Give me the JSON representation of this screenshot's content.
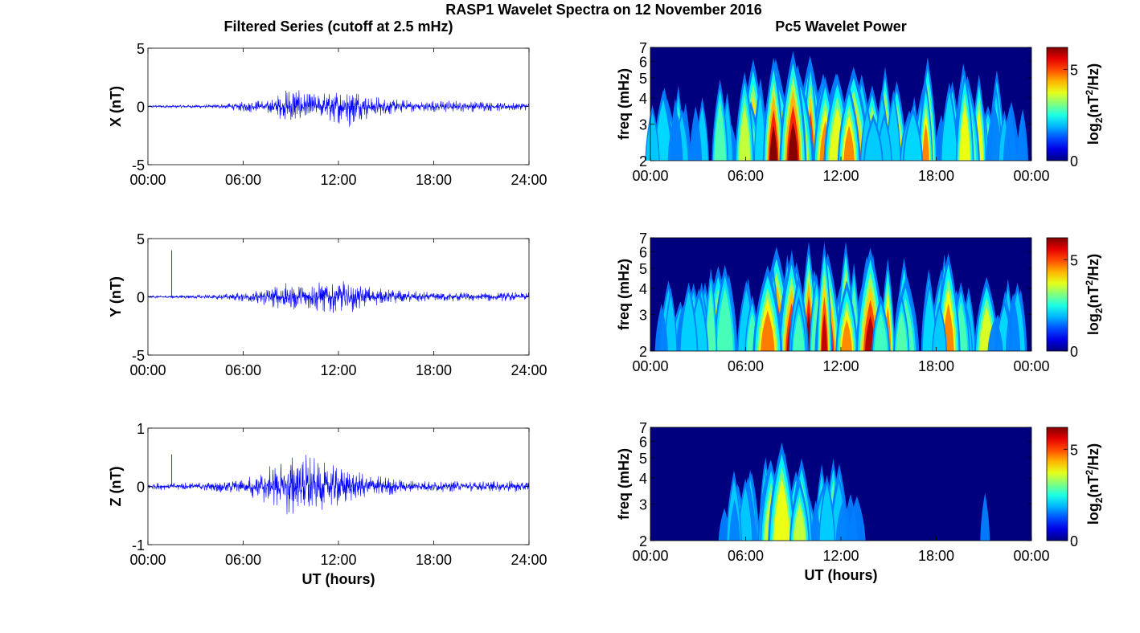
{
  "figure": {
    "title": "RASP1 Wavelet Spectra on 12 November 2016",
    "left_column_title": "Filtered Series (cutoff at 2.5 mHz)",
    "right_column_title": "Pc5 Wavelet Power"
  },
  "colors": {
    "series_line": "#0000ff",
    "axes": "#000000",
    "colormap": "jet",
    "spectrogram_background": "#00007f"
  },
  "chart_data": [
    {
      "type": "line",
      "panel": "X",
      "ylabel": "X (nT)",
      "xlabel": "",
      "ylim": [
        -5,
        5
      ],
      "yticks": [
        "5",
        "0",
        "-5"
      ],
      "xticks": [
        "00:00",
        "06:00",
        "12:00",
        "18:00",
        "24:00"
      ],
      "x_unit": "hours UT",
      "envelope": {
        "hours": [
          0,
          2,
          4,
          5,
          6,
          7,
          8,
          8.5,
          9,
          9.5,
          10,
          10.5,
          11,
          12,
          12.5,
          13,
          13.5,
          14,
          15,
          16,
          18,
          20,
          22,
          24
        ],
        "amplitude_nT": [
          0.12,
          0.15,
          0.18,
          0.28,
          0.45,
          0.6,
          0.9,
          1.3,
          1.8,
          1.5,
          1.1,
          1.2,
          1.3,
          1.6,
          2.0,
          1.7,
          1.3,
          1.0,
          0.8,
          0.6,
          0.55,
          0.5,
          0.45,
          0.35
        ]
      },
      "series": [
        {
          "name": "",
          "color": "#0000ff"
        }
      ]
    },
    {
      "type": "line",
      "panel": "Y",
      "ylabel": "Y (nT)",
      "xlabel": "",
      "ylim": [
        -5,
        5
      ],
      "yticks": [
        "5",
        "0",
        "-5"
      ],
      "xticks": [
        "00:00",
        "06:00",
        "12:00",
        "18:00",
        "24:00"
      ],
      "x_unit": "hours UT",
      "spike": {
        "hour": 1.5,
        "value_nT": 4.0
      },
      "envelope": {
        "hours": [
          0,
          2,
          4,
          5,
          6,
          7,
          8,
          9,
          9.5,
          10,
          11,
          12,
          13,
          14,
          15,
          16,
          18,
          20,
          22,
          24
        ],
        "amplitude_nT": [
          0.12,
          0.15,
          0.2,
          0.3,
          0.45,
          0.7,
          1.0,
          1.4,
          1.2,
          1.1,
          1.4,
          1.6,
          1.3,
          0.9,
          0.7,
          0.55,
          0.45,
          0.42,
          0.4,
          0.4
        ]
      },
      "series": [
        {
          "name": "",
          "color": "#0000ff"
        }
      ]
    },
    {
      "type": "line",
      "panel": "Z",
      "ylabel": "Z (nT)",
      "xlabel": "UT (hours)",
      "ylim": [
        -1,
        1
      ],
      "yticks": [
        "1",
        "0",
        "-1"
      ],
      "xticks": [
        "00:00",
        "06:00",
        "12:00",
        "18:00",
        "24:00"
      ],
      "x_unit": "hours UT",
      "spike": {
        "hour": 1.5,
        "value_nT": 0.55
      },
      "envelope": {
        "hours": [
          0,
          2,
          4,
          6,
          7,
          8,
          8.5,
          9,
          9.5,
          10,
          11,
          12,
          13,
          14,
          16,
          18,
          20,
          22,
          24
        ],
        "amplitude_nT": [
          0.06,
          0.07,
          0.09,
          0.15,
          0.25,
          0.4,
          0.5,
          0.75,
          0.45,
          0.6,
          0.45,
          0.4,
          0.3,
          0.22,
          0.12,
          0.1,
          0.1,
          0.1,
          0.1
        ]
      },
      "series": [
        {
          "name": "",
          "color": "#0000ff"
        }
      ]
    },
    {
      "type": "heatmap",
      "panel": "X wavelet",
      "ylabel": "freq (mHz)",
      "xlabel": "",
      "yscale": "log",
      "ylim": [
        2,
        7
      ],
      "yticks": [
        "2",
        "3",
        "4",
        "5",
        "6",
        "7"
      ],
      "xticks": [
        "00:00",
        "06:00",
        "12:00",
        "18:00",
        "00:00"
      ],
      "colorbar": {
        "label": "log2(nT2/Hz)",
        "label_base": "log",
        "label_sub": "2",
        "label_mid": "(nT",
        "label_sup": "2",
        "label_end": "/Hz)",
        "range": [
          0,
          6.2
        ],
        "ticks": [
          "0",
          "5"
        ]
      },
      "activity": {
        "hours": [
          0,
          1,
          2,
          3,
          4,
          5,
          6,
          7,
          8,
          9,
          10,
          11,
          12,
          13,
          14,
          15,
          16,
          17,
          18,
          19,
          20,
          21,
          22,
          23,
          24
        ],
        "level": [
          0.4,
          0.55,
          0.5,
          0.45,
          0.5,
          0.7,
          0.8,
          0.85,
          0.9,
          1.0,
          0.9,
          0.95,
          1.0,
          0.95,
          0.85,
          0.75,
          0.7,
          0.72,
          0.8,
          0.7,
          0.85,
          0.7,
          0.55,
          0.45,
          0.3
        ]
      }
    },
    {
      "type": "heatmap",
      "panel": "Y wavelet",
      "ylabel": "freq (mHz)",
      "xlabel": "",
      "yscale": "log",
      "ylim": [
        2,
        7
      ],
      "yticks": [
        "2",
        "3",
        "4",
        "5",
        "6",
        "7"
      ],
      "xticks": [
        "00:00",
        "06:00",
        "12:00",
        "18:00",
        "00:00"
      ],
      "colorbar": {
        "label": "log2(nT2/Hz)",
        "label_base": "log",
        "label_sub": "2",
        "label_mid": "(nT",
        "label_sup": "2",
        "label_end": "/Hz)",
        "range": [
          0,
          6.2
        ],
        "ticks": [
          "0",
          "5"
        ]
      },
      "activity": {
        "hours": [
          0,
          1,
          2,
          3,
          4,
          5,
          6,
          7,
          8,
          9,
          10,
          11,
          12,
          13,
          14,
          15,
          16,
          17,
          18,
          19,
          20,
          21,
          22,
          23,
          24
        ],
        "level": [
          0.45,
          0.55,
          0.5,
          0.5,
          0.6,
          0.8,
          0.85,
          0.9,
          0.95,
          0.95,
          0.9,
          1.0,
          1.0,
          0.9,
          0.8,
          0.75,
          0.7,
          0.7,
          0.75,
          0.7,
          0.8,
          0.7,
          0.6,
          0.5,
          0.4
        ]
      }
    },
    {
      "type": "heatmap",
      "panel": "Z wavelet",
      "ylabel": "freq (mHz)",
      "xlabel": "UT (hours)",
      "yscale": "log",
      "ylim": [
        2,
        7
      ],
      "yticks": [
        "2",
        "3",
        "4",
        "5",
        "6",
        "7"
      ],
      "xticks": [
        "00:00",
        "06:00",
        "12:00",
        "18:00",
        "00:00"
      ],
      "colorbar": {
        "label": "log2(nT2/Hz)",
        "label_base": "log",
        "label_sub": "2",
        "label_mid": "(nT",
        "label_sup": "2",
        "label_end": "/Hz)",
        "range": [
          0,
          6.2
        ],
        "ticks": [
          "0",
          "5"
        ]
      },
      "activity": {
        "hours": [
          0,
          1,
          2,
          3,
          4,
          5,
          6,
          7,
          8,
          9,
          10,
          11,
          12,
          13,
          14,
          15,
          16,
          17,
          18,
          19,
          20,
          21,
          22,
          23,
          24
        ],
        "level": [
          0.1,
          0.25,
          0.1,
          0.1,
          0.2,
          0.4,
          0.5,
          0.65,
          0.7,
          0.8,
          0.65,
          0.6,
          0.55,
          0.35,
          0.15,
          0.1,
          0.1,
          0.1,
          0.25,
          0.2,
          0.3,
          0.3,
          0.15,
          0.1,
          0.1
        ]
      }
    }
  ]
}
